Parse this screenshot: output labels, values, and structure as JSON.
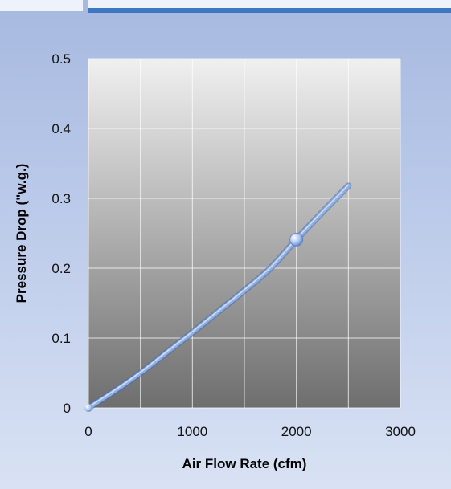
{
  "chart_data": {
    "type": "line",
    "title": "",
    "xlabel": "Air Flow Rate (cfm)",
    "ylabel": "Pressure Drop (\"w.g.)",
    "xlim": [
      0,
      3000
    ],
    "ylim": [
      0,
      0.5
    ],
    "x_ticks": [
      0,
      1000,
      2000,
      3000
    ],
    "x_tick_labels": [
      "0",
      "1000",
      "2000",
      "3000"
    ],
    "y_ticks": [
      0,
      0.1,
      0.2,
      0.3,
      0.4,
      0.5
    ],
    "y_tick_labels": [
      "0",
      "0.1",
      "0.2",
      "0.3",
      "0.4",
      "0.5"
    ],
    "x_minor_gridlines": [
      500,
      1500,
      2500
    ],
    "grid": true,
    "legend": "none",
    "series": [
      {
        "x": [
          0,
          250,
          500,
          750,
          1000,
          1250,
          1500,
          1750,
          2000,
          2250,
          2500
        ],
        "values": [
          0,
          0.024,
          0.05,
          0.079,
          0.108,
          0.138,
          0.168,
          0.2,
          0.241,
          0.28,
          0.318
        ],
        "color": "#8fb0e6"
      }
    ],
    "markers": [
      {
        "x": 2000,
        "y": 0.241
      }
    ]
  },
  "colors": {
    "line": "#8fb0e6",
    "plot_top": "#f0f0f0",
    "plot_bottom": "#6e6e6e",
    "accent_rule": "#3d77bf"
  }
}
